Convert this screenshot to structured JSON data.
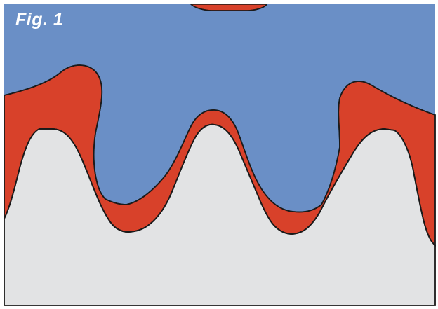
{
  "figure": {
    "label": "Fig. 1"
  },
  "colors": {
    "upper_region": "#6a8fc6",
    "boundary_layer": "#d8412a",
    "lower_region": "#e2e3e4",
    "outline": "#1a1a1a",
    "frame": "#ffffff"
  }
}
